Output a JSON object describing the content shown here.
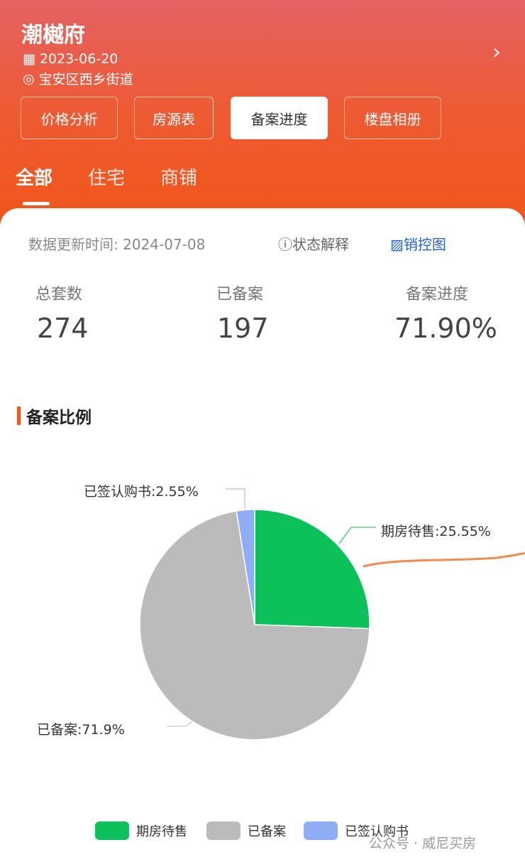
{
  "header": {
    "title": "潮樾府",
    "date": "2023-06-20",
    "location": "宝安区西乡街道",
    "buttons": [
      "价格分析",
      "房源表",
      "备案进度",
      "楼盘相册"
    ],
    "active_button": "备案进度",
    "tabs": [
      "全部",
      "住宅",
      "商铺"
    ],
    "active_tab": "全部"
  },
  "info": {
    "update_label": "数据更新时间:",
    "update_date": "2024-07-08",
    "status_help": "状态解释",
    "sales_map": "销控图"
  },
  "stats": [
    {
      "label": "总套数",
      "value": "274"
    },
    {
      "label": "已备案",
      "value": "197"
    },
    {
      "label": "备案进度",
      "value": "71.90%"
    }
  ],
  "section_title": "备案比例",
  "chart_data": {
    "type": "pie",
    "title": "备案比例",
    "slices": [
      {
        "name": "期房待售",
        "value": 25.55,
        "label": "期房待售:25.55%",
        "color": "#0cc05a"
      },
      {
        "name": "已备案",
        "value": 71.9,
        "label": "已备案:71.9%",
        "color": "#bbbbbb"
      },
      {
        "name": "已签认购书",
        "value": 2.55,
        "label": "已签认购书:2.55%",
        "color": "#8fadf5"
      }
    ],
    "legend": "bottom"
  },
  "watermark": "公众号 · 威尼买房"
}
